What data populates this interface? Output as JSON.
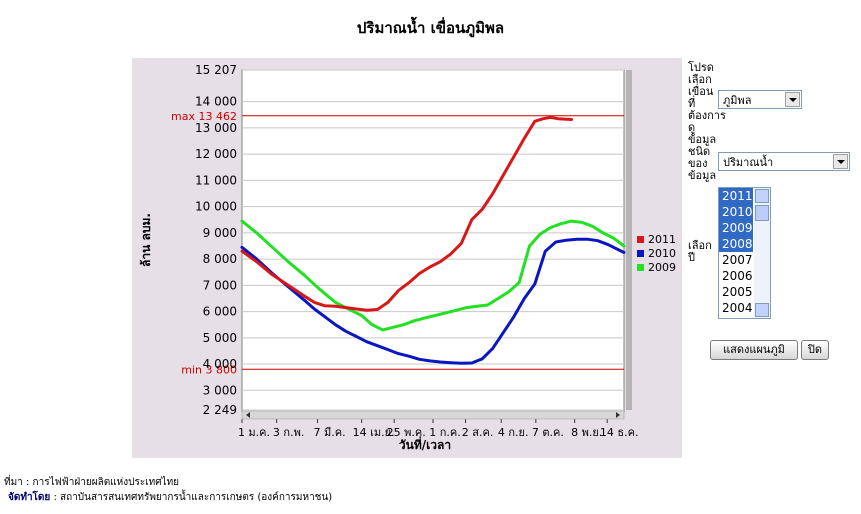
{
  "page": {
    "title": "ปริมาณน้ำ เขื่อนภูมิพล"
  },
  "chart_data": {
    "type": "line",
    "title": "",
    "xlabel": "วันที่/เวลา",
    "ylabel": "ล้าน ลบม.",
    "ylim": [
      2249,
      15207
    ],
    "yticks": [
      2249,
      3000,
      4000,
      5000,
      6000,
      7000,
      8000,
      9000,
      10000,
      11000,
      12000,
      13000,
      14000,
      15207
    ],
    "ytick_labels": [
      "2 249",
      "3 000",
      "4 000",
      "5 000",
      "6 000",
      "7 000",
      "8 000",
      "9 000",
      "10 000",
      "11 000",
      "12 000",
      "13 000",
      "14 000",
      "15 207"
    ],
    "xlim": [
      1,
      365
    ],
    "xticks": [
      1,
      34,
      73,
      115,
      146,
      183,
      214,
      248,
      281,
      318,
      349
    ],
    "xtick_labels": [
      "1 ม.ค.",
      "3 ก.พ.",
      "7 มี.ค.",
      "14 เม.ย.",
      "25 พ.ค.",
      "1 ก.ค.",
      "2 ส.ค.",
      "4 ก.ย.",
      "7 ต.ค.",
      "8 พ.ย.",
      "14 ธ.ค."
    ],
    "reference_lines": [
      {
        "label": "max 13 462",
        "value": 13462,
        "color": "#cc0000"
      },
      {
        "label": "min 3 800",
        "value": 3800,
        "color": "#cc0000"
      }
    ],
    "legend_position": "right",
    "grid": true,
    "series": [
      {
        "name": "2011",
        "color": "#d81818",
        "x": [
          1,
          15,
          30,
          45,
          60,
          70,
          80,
          90,
          100,
          110,
          120,
          130,
          140,
          150,
          160,
          170,
          180,
          190,
          200,
          210,
          220,
          230,
          240,
          250,
          260,
          270,
          280,
          288,
          295,
          302,
          310,
          315
        ],
        "values": [
          8300,
          7900,
          7400,
          7000,
          6600,
          6350,
          6220,
          6200,
          6150,
          6100,
          6050,
          6080,
          6350,
          6800,
          7100,
          7450,
          7700,
          7900,
          8200,
          8600,
          9500,
          9900,
          10500,
          11200,
          11900,
          12600,
          13250,
          13350,
          13400,
          13350,
          13330,
          13320
        ]
      },
      {
        "name": "2010",
        "color": "#0a17c0",
        "x": [
          1,
          15,
          30,
          45,
          60,
          70,
          80,
          90,
          100,
          110,
          120,
          130,
          140,
          150,
          160,
          170,
          180,
          190,
          200,
          210,
          220,
          230,
          240,
          250,
          260,
          270,
          280,
          290,
          300,
          310,
          320,
          330,
          340,
          350,
          365
        ],
        "values": [
          8450,
          8000,
          7450,
          6950,
          6450,
          6100,
          5800,
          5500,
          5250,
          5050,
          4850,
          4700,
          4550,
          4400,
          4300,
          4180,
          4120,
          4080,
          4050,
          4030,
          4040,
          4200,
          4600,
          5200,
          5800,
          6500,
          7050,
          8300,
          8650,
          8720,
          8760,
          8760,
          8700,
          8550,
          8250
        ]
      },
      {
        "name": "2009",
        "color": "#22e022",
        "x": [
          1,
          15,
          30,
          45,
          60,
          75,
          90,
          105,
          115,
          125,
          135,
          145,
          155,
          165,
          175,
          185,
          195,
          205,
          215,
          225,
          235,
          245,
          255,
          265,
          275,
          285,
          295,
          305,
          315,
          325,
          335,
          345,
          355,
          365
        ],
        "values": [
          9450,
          9000,
          8450,
          7900,
          7400,
          6850,
          6350,
          6050,
          5850,
          5500,
          5300,
          5400,
          5500,
          5650,
          5750,
          5850,
          5950,
          6050,
          6150,
          6200,
          6250,
          6500,
          6750,
          7100,
          8500,
          8950,
          9200,
          9350,
          9450,
          9400,
          9250,
          9000,
          8800,
          8500
        ]
      }
    ]
  },
  "controls": {
    "dam_label": "โปรดเลือกเขื่อนที่ต้องการดูข้อมูล",
    "dam_selected": "ภูมิพล",
    "type_label": "ชนิดของข้อมูล",
    "type_selected": "ปริมาณน้ำ",
    "year_label": "เลือกปี",
    "years": [
      {
        "label": "2011",
        "selected": true
      },
      {
        "label": "2010",
        "selected": true
      },
      {
        "label": "2009",
        "selected": true
      },
      {
        "label": "2008",
        "selected": true
      },
      {
        "label": "2007",
        "selected": false
      },
      {
        "label": "2006",
        "selected": false
      },
      {
        "label": "2005",
        "selected": false
      },
      {
        "label": "2004",
        "selected": false
      }
    ],
    "show_button": "แสดงแผนภูมิ",
    "close_button": "ปิด"
  },
  "footer": {
    "source": "ที่มา : การไฟฟ้าฝ่ายผลิตแห่งประเทศไทย",
    "made_by_label": "จัดทำโดย",
    "made_by": " : สถาบันสารสนเทศทรัพยากรน้ำและการเกษตร (องค์การมหาชน)"
  }
}
